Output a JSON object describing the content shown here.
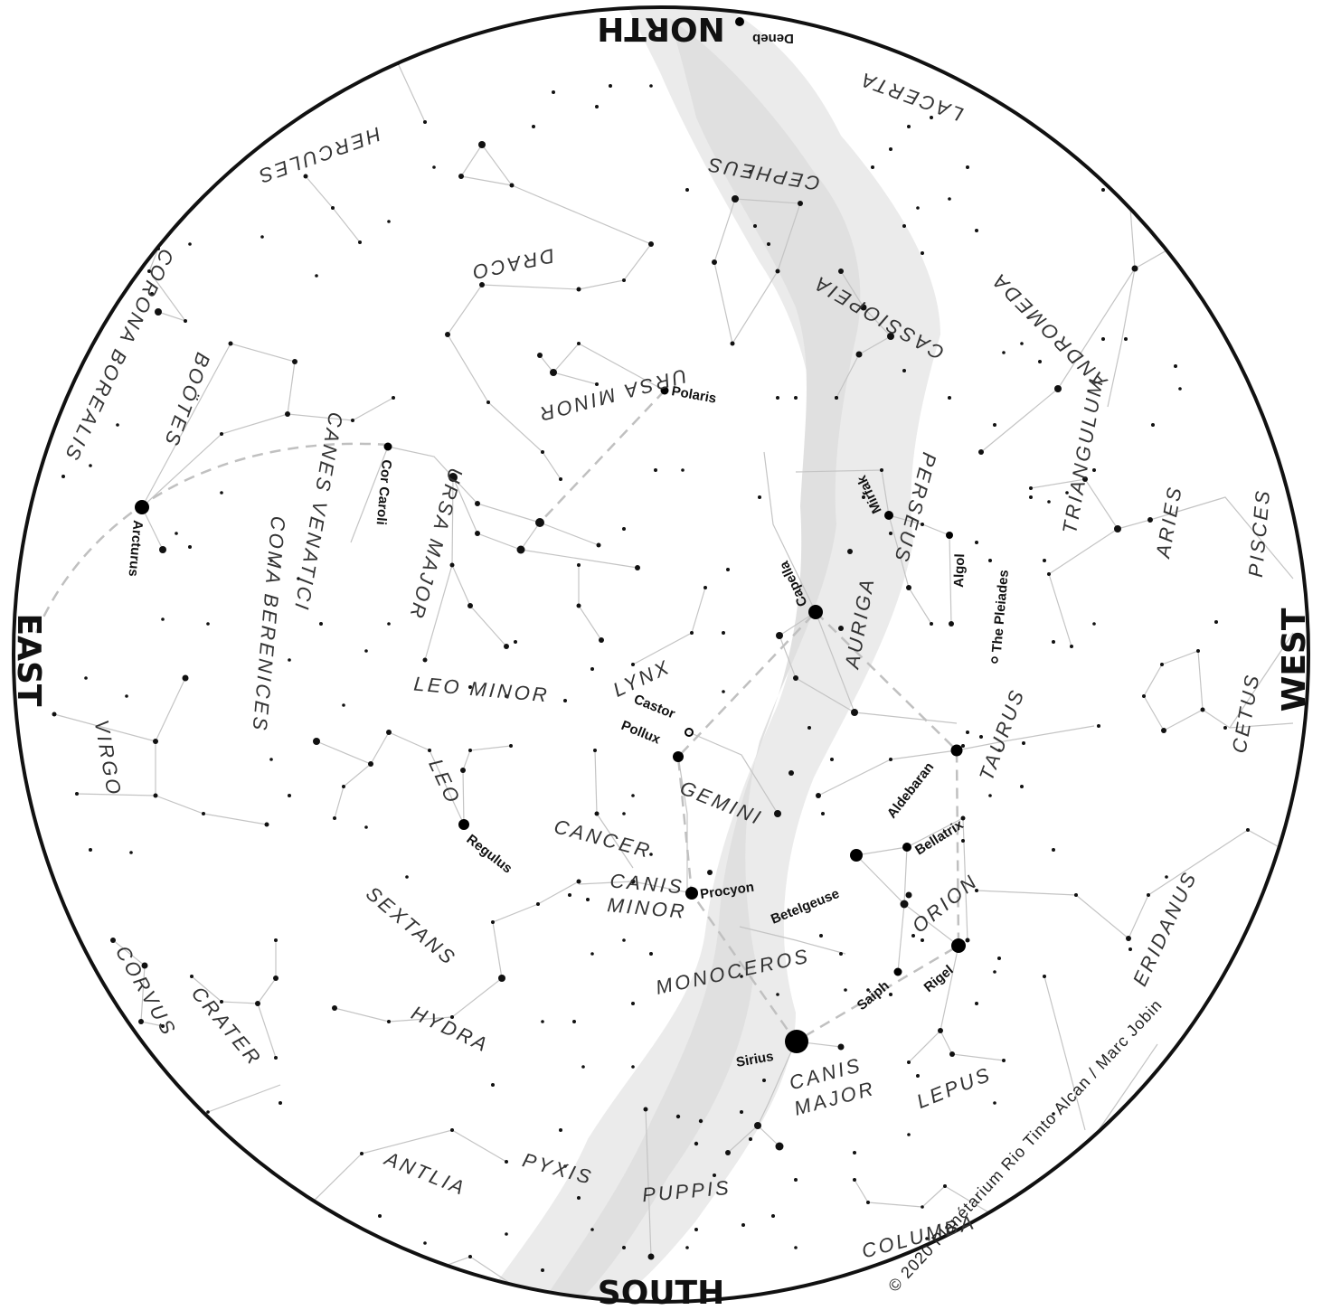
{
  "cardinals": {
    "north": "NORTH",
    "south": "SOUTH",
    "east": "EAST",
    "west": "WEST"
  },
  "constellations": {
    "hercules": "HERCULES",
    "lacerta": "LACERTA",
    "cepheus": "CEPHEUS",
    "draco": "DRACO",
    "cassiopeia": "CASSIOPEIA",
    "andromeda": "ANDROMEDA",
    "corona_borealis": "CORONA BOREALIS",
    "bootes": "BOÖTES",
    "ursa_minor": "URSA MINOR",
    "perseus": "PERSEUS",
    "triangulum": "TRIANGULUM",
    "canes_venatici": "CANES VENATICI",
    "ursa_major": "URSA MAJOR",
    "aries": "ARIES",
    "pisces": "PISCES",
    "coma_berenices": "COMA BERENICES",
    "auriga": "AURIGA",
    "lynx": "LYNX",
    "leo_minor": "LEO MINOR",
    "taurus": "TAURUS",
    "cetus": "CETUS",
    "virgo": "VIRGO",
    "leo": "LEO",
    "gemini": "GEMINI",
    "cancer": "CANCER",
    "canis_minor": "CANIS MINOR",
    "orion": "ORION",
    "eridanus": "ERIDANUS",
    "sextans": "SEXTANS",
    "monoceros": "MONOCEROS",
    "corvus": "CORVUS",
    "crater": "CRATER",
    "hydra": "HYDRA",
    "canis_major": "CANIS MAJOR",
    "lepus": "LEPUS",
    "antlia": "ANTLIA",
    "pyxis": "PYXIS",
    "puppis": "PUPPIS",
    "columba": "COLUMBA"
  },
  "stars": {
    "deneb": "Deneb",
    "polaris": "Polaris",
    "mirfak": "Mirfak",
    "algol": "Algol",
    "pleiades": "The Pleiades",
    "cor_caroli": "Cor Caroli",
    "arcturus": "Arcturus",
    "capella": "Capella",
    "castor": "Castor",
    "pollux": "Pollux",
    "aldebaran": "Aldebaran",
    "bellatrix": "Bellatrix",
    "regulus": "Regulus",
    "procyon": "Procyon",
    "betelgeuse": "Betelgeuse",
    "rigel": "Rigel",
    "saiph": "Saiph",
    "sirius": "Sirius"
  },
  "credit": "© 2020 Planétarium Rio Tinto Alcan / Marc Jobin"
}
